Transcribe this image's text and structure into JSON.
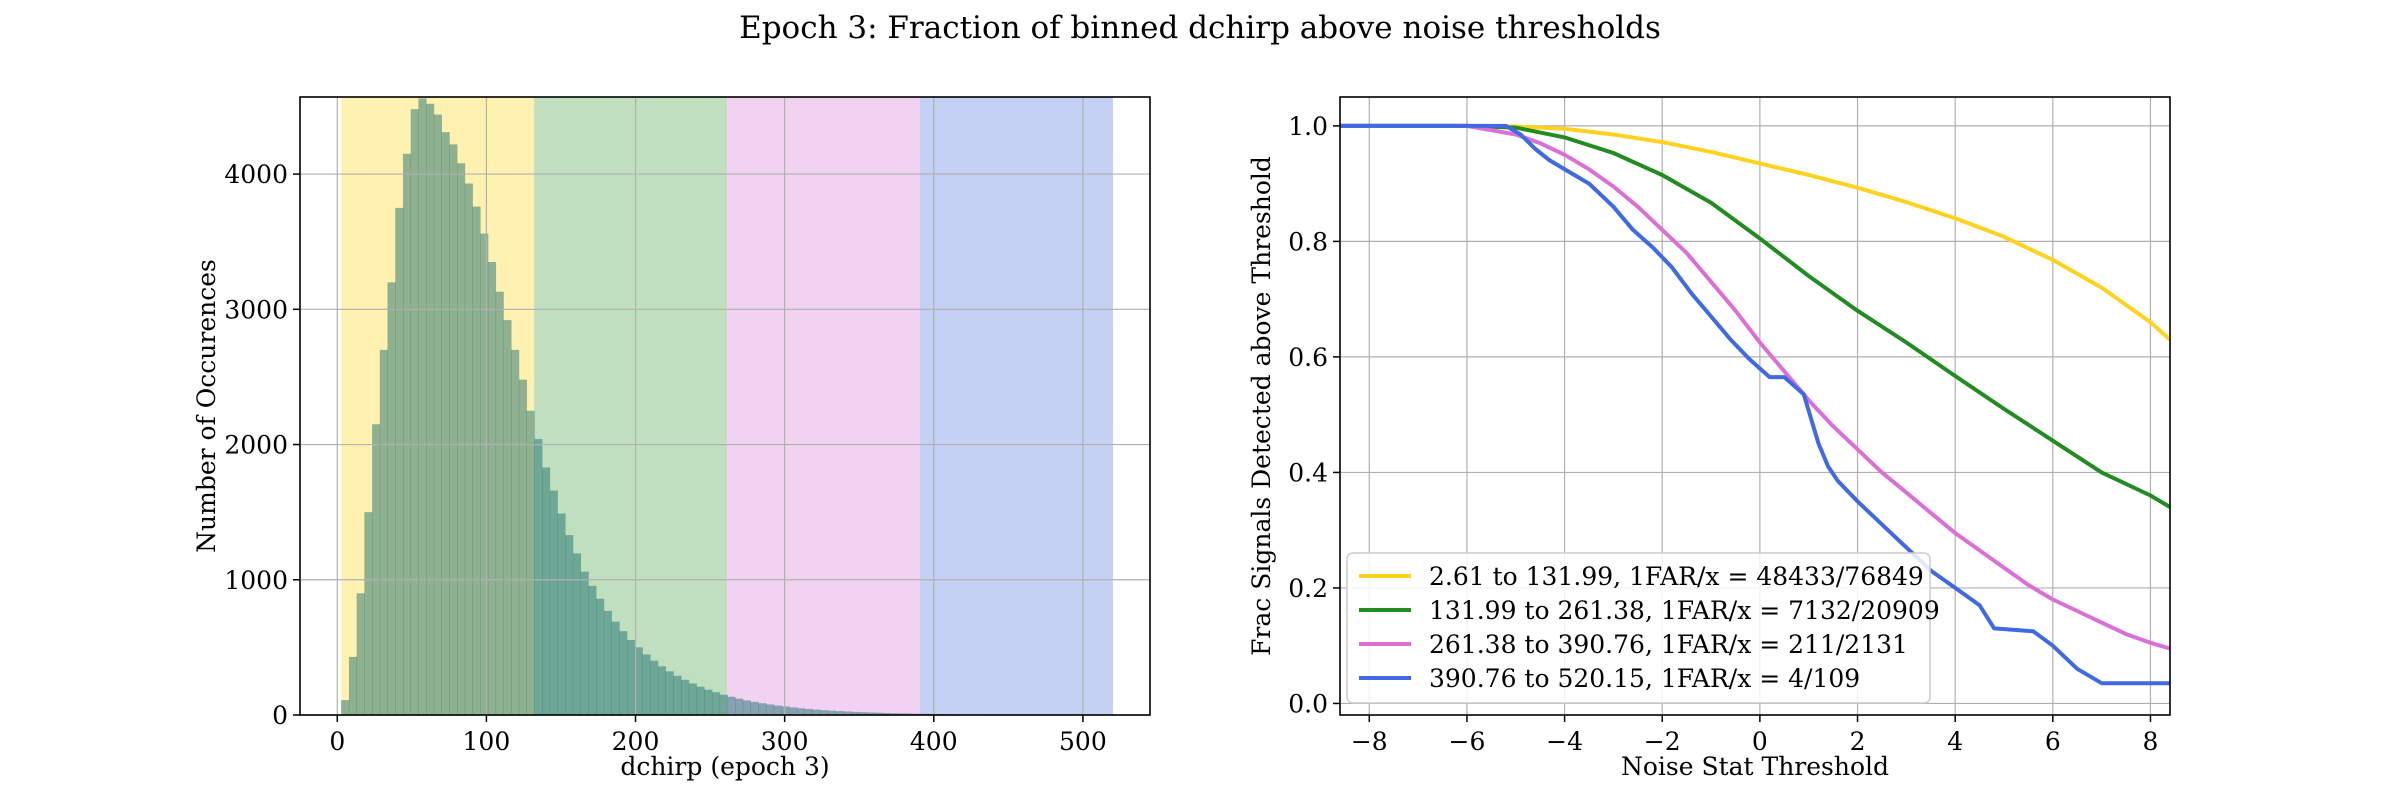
{
  "figure": {
    "title": "Epoch 3: Fraction of binned dchirp above noise thresholds"
  },
  "chart_data": [
    {
      "type": "histogram",
      "xlabel": "dchirp (epoch 3)",
      "ylabel": "Number of Occurences",
      "xlim": [
        -25,
        545
      ],
      "ylim": [
        0,
        4570
      ],
      "xticks": [
        0,
        100,
        200,
        300,
        400,
        500
      ],
      "yticks": [
        0,
        1000,
        2000,
        3000,
        4000
      ],
      "grid": true,
      "bands": [
        {
          "from": 2.61,
          "to": 131.99,
          "color": "#fff2b0"
        },
        {
          "from": 131.99,
          "to": 261.38,
          "color": "#bfdfbf"
        },
        {
          "from": 261.38,
          "to": 390.76,
          "color": "#f1d2f1"
        },
        {
          "from": 390.76,
          "to": 520.15,
          "color": "#c4d0f4"
        }
      ],
      "bin_start": 2.61,
      "bin_width": 5.18,
      "counts": [
        110,
        430,
        900,
        1500,
        2150,
        2700,
        3200,
        3750,
        4150,
        4480,
        4560,
        4520,
        4440,
        4310,
        4220,
        4080,
        3930,
        3760,
        3560,
        3350,
        3130,
        2920,
        2700,
        2480,
        2250,
        2040,
        1830,
        1660,
        1490,
        1330,
        1195,
        1060,
        955,
        860,
        770,
        690,
        620,
        555,
        500,
        448,
        402,
        360,
        323,
        290,
        260,
        233,
        209,
        187,
        168,
        150,
        135,
        121,
        108,
        97,
        87,
        78,
        70,
        63,
        56,
        50,
        45,
        40,
        36,
        32,
        29,
        26,
        23,
        21,
        19,
        17,
        15,
        13,
        12,
        11,
        10,
        9,
        8,
        7,
        6,
        5,
        5,
        4,
        4,
        3,
        3,
        3,
        2,
        2,
        2,
        2,
        2,
        1,
        1,
        1,
        1,
        1,
        1,
        1,
        1,
        1
      ]
    },
    {
      "type": "line",
      "xlabel": "Noise Stat Threshold",
      "ylabel": "Frac Signals Detected above Threshold",
      "xlim": [
        -8.6,
        8.4
      ],
      "ylim": [
        -0.02,
        1.05
      ],
      "xticks": [
        -8,
        -6,
        -4,
        -2,
        0,
        2,
        4,
        6,
        8
      ],
      "xticklabels": [
        "−8",
        "−6",
        "−4",
        "−2",
        "0",
        "2",
        "4",
        "6",
        "8"
      ],
      "yticks": [
        0.0,
        0.2,
        0.4,
        0.6,
        0.8,
        1.0
      ],
      "yticklabels": [
        "0.0",
        "0.2",
        "0.4",
        "0.6",
        "0.8",
        "1.0"
      ],
      "grid": true,
      "legend_position": "lower-left",
      "series": [
        {
          "name": "2.61 to 131.99, 1FAR/x = 48433/76849",
          "color": "#ffd21f",
          "x": [
            -8.6,
            -6,
            -5,
            -4,
            -3,
            -2,
            -1,
            0,
            1,
            2,
            3,
            4,
            5,
            6,
            7,
            8,
            8.4
          ],
          "y": [
            1.0,
            1.0,
            0.999,
            0.995,
            0.985,
            0.972,
            0.955,
            0.935,
            0.915,
            0.893,
            0.868,
            0.84,
            0.808,
            0.768,
            0.72,
            0.66,
            0.63
          ]
        },
        {
          "name": "131.99 to 261.38, 1FAR/x = 7132/20909",
          "color": "#228b22",
          "x": [
            -8.6,
            -6,
            -5,
            -4,
            -3,
            -2,
            -1,
            0,
            1,
            2,
            3,
            4,
            5,
            6,
            7,
            8,
            8.4
          ],
          "y": [
            1.0,
            1.0,
            0.997,
            0.98,
            0.953,
            0.915,
            0.867,
            0.805,
            0.74,
            0.68,
            0.625,
            0.567,
            0.51,
            0.455,
            0.4,
            0.36,
            0.34
          ]
        },
        {
          "name": "261.38 to 390.76, 1FAR/x = 211/2131",
          "color": "#da70d6",
          "x": [
            -8.6,
            -6,
            -5,
            -4.5,
            -4,
            -3.5,
            -3,
            -2.5,
            -2,
            -1.5,
            -1,
            -0.5,
            0,
            0.5,
            1,
            1.5,
            2,
            2.5,
            3,
            3.5,
            4,
            4.5,
            5,
            5.5,
            6,
            6.5,
            7,
            7.5,
            8,
            8.4
          ],
          "y": [
            1.0,
            1.0,
            0.985,
            0.97,
            0.95,
            0.925,
            0.895,
            0.86,
            0.82,
            0.78,
            0.73,
            0.68,
            0.625,
            0.575,
            0.525,
            0.48,
            0.44,
            0.4,
            0.365,
            0.33,
            0.295,
            0.265,
            0.235,
            0.205,
            0.18,
            0.16,
            0.14,
            0.12,
            0.105,
            0.095
          ]
        },
        {
          "name": "390.76 to 520.15, 1FAR/x = 4/109",
          "color": "#4169e1",
          "x": [
            -8.6,
            -5.2,
            -4.9,
            -4.6,
            -4.3,
            -3.9,
            -3.5,
            -3.0,
            -2.6,
            -2.2,
            -1.8,
            -1.4,
            -1.0,
            -0.6,
            -0.2,
            0.2,
            0.5,
            0.9,
            1.2,
            1.4,
            1.6,
            2.0,
            2.5,
            3.0,
            3.5,
            4.0,
            4.5,
            4.8,
            5.6,
            6.0,
            6.5,
            7.0,
            8.4
          ],
          "y": [
            1.0,
            1.0,
            0.985,
            0.96,
            0.94,
            0.92,
            0.9,
            0.86,
            0.82,
            0.79,
            0.755,
            0.71,
            0.67,
            0.63,
            0.595,
            0.565,
            0.565,
            0.535,
            0.45,
            0.41,
            0.385,
            0.35,
            0.31,
            0.27,
            0.23,
            0.2,
            0.17,
            0.13,
            0.125,
            0.1,
            0.06,
            0.035,
            0.035
          ]
        }
      ]
    }
  ]
}
